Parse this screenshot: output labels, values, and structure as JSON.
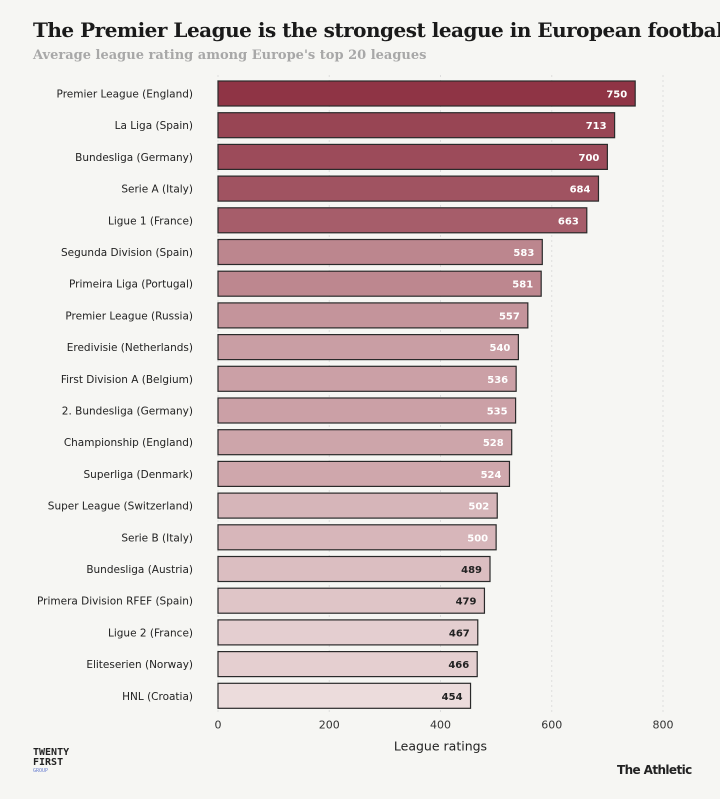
{
  "chart_data": {
    "type": "bar",
    "orientation": "horizontal",
    "title": "The Premier League is the strongest league in European football",
    "subtitle": "Average league rating among Europe's top 20 leagues",
    "xlabel": "League ratings",
    "ylabel": "",
    "xlim": [
      0,
      800
    ],
    "xticks": [
      0,
      200,
      400,
      600,
      800
    ],
    "grid": true,
    "colors": {
      "high": "#8f3445",
      "low": "#ecdcdc",
      "border": "#2a2a2a"
    },
    "categories": [
      "Premier League (England)",
      "La Liga (Spain)",
      "Bundesliga (Germany)",
      "Serie A (Italy)",
      "Ligue 1 (France)",
      "Segunda Division (Spain)",
      "Primeira Liga (Portugal)",
      "Premier League (Russia)",
      "Eredivisie (Netherlands)",
      "First Division A (Belgium)",
      "2. Bundesliga (Germany)",
      "Championship (England)",
      "Superliga (Denmark)",
      "Super League (Switzerland)",
      "Serie B (Italy)",
      "Bundesliga (Austria)",
      "Primera Division RFEF (Spain)",
      "Ligue 2 (France)",
      "Eliteserien (Norway)",
      "HNL (Croatia)"
    ],
    "values": [
      750,
      713,
      700,
      684,
      663,
      583,
      581,
      557,
      540,
      536,
      535,
      528,
      524,
      502,
      500,
      489,
      479,
      467,
      466,
      454
    ]
  },
  "logos": {
    "left": [
      "TWENTY",
      "FIRST",
      "GROUP"
    ],
    "right": "The Athletic"
  }
}
